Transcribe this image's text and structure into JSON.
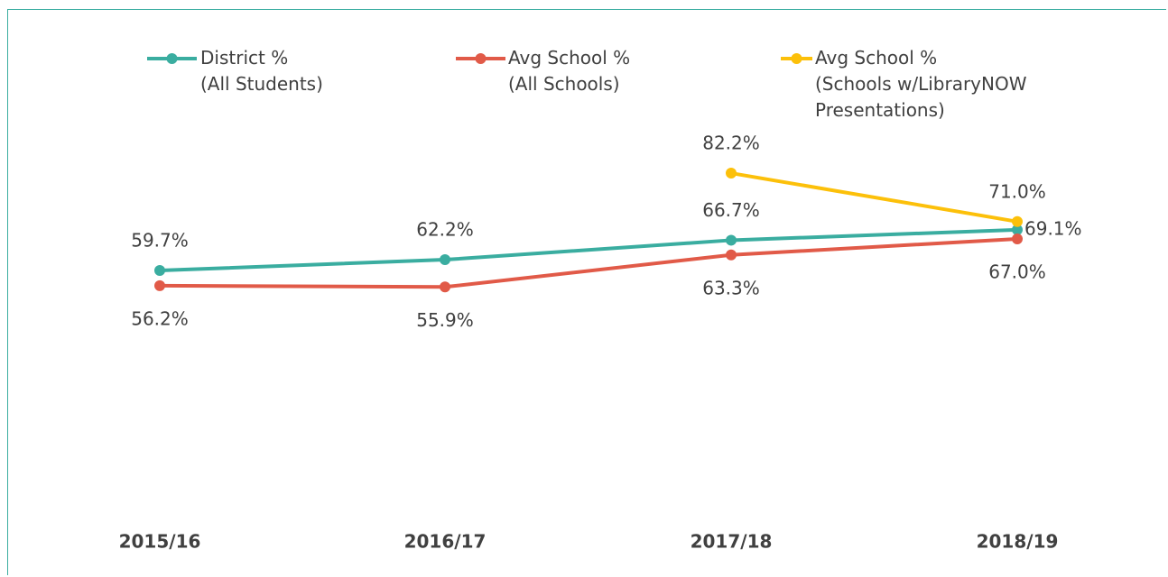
{
  "chart_data": {
    "type": "line",
    "categories": [
      "2015/16",
      "2016/17",
      "2017/18",
      "2018/19"
    ],
    "series": [
      {
        "name": "District %\n(All Students)",
        "color": "#3aada0",
        "values": [
          59.7,
          62.2,
          66.7,
          69.1
        ],
        "value_labels": [
          "59.7%",
          "62.2%",
          "66.7%",
          "69.1%"
        ]
      },
      {
        "name": "Avg School %\n(All Schools)",
        "color": "#e15a48",
        "values": [
          56.2,
          55.9,
          63.3,
          67.0
        ],
        "value_labels": [
          "56.2%",
          "55.9%",
          "63.3%",
          "67.0%"
        ]
      },
      {
        "name": "Avg School %\n(Schools w/LibraryNOW\nPresentations)",
        "color": "#fcc00a",
        "values": [
          null,
          null,
          82.2,
          71.0
        ],
        "value_labels": [
          null,
          null,
          "82.2%",
          "71.0%"
        ]
      }
    ],
    "ylim": [
      0,
      100
    ]
  }
}
